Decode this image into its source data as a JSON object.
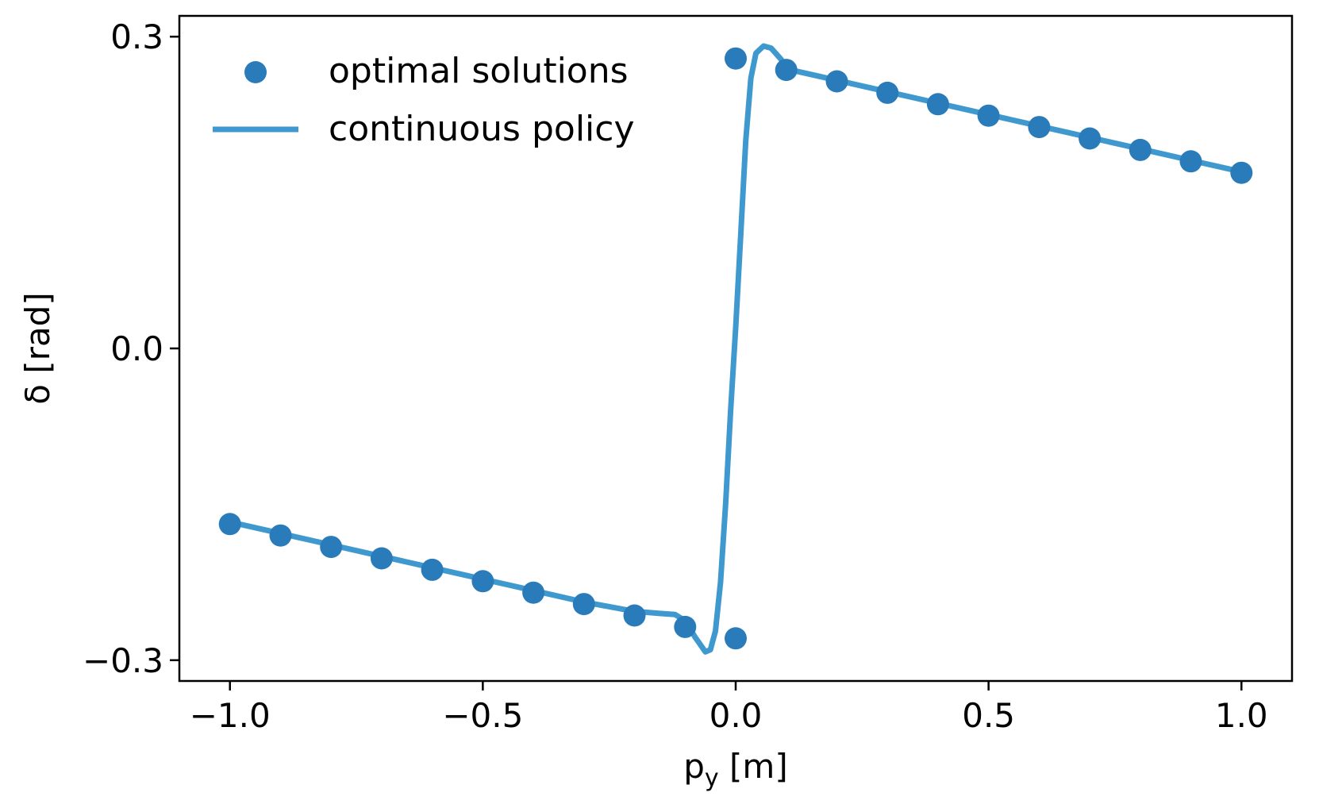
{
  "chart_data": {
    "type": "scatter+line",
    "title": "",
    "xlabel": "p",
    "xlabel_sub": "y",
    "xlabel_unit": " [m]",
    "ylabel": "δ [rad]",
    "xlim": [
      -1.1,
      1.1
    ],
    "ylim": [
      -0.32,
      0.32
    ],
    "xticks": [
      -1.0,
      -0.5,
      0.0,
      0.5,
      1.0
    ],
    "xtick_labels": [
      "−1.0",
      "−0.5",
      "0.0",
      "0.5",
      "1.0"
    ],
    "yticks": [
      -0.3,
      0.0,
      0.3
    ],
    "ytick_labels": [
      "−0.3",
      "0.0",
      "0.3"
    ],
    "legend_position": "top-left",
    "series": [
      {
        "name": "optimal solutions",
        "kind": "scatter",
        "color": "#2a7bba",
        "points": [
          [
            -1.0,
            -0.169
          ],
          [
            -0.9,
            -0.18
          ],
          [
            -0.8,
            -0.191
          ],
          [
            -0.7,
            -0.202
          ],
          [
            -0.6,
            -0.213
          ],
          [
            -0.5,
            -0.224
          ],
          [
            -0.4,
            -0.235
          ],
          [
            -0.3,
            -0.246
          ],
          [
            -0.2,
            -0.257
          ],
          [
            -0.1,
            -0.268
          ],
          [
            0.0,
            -0.279
          ],
          [
            0.0,
            0.279
          ],
          [
            0.1,
            0.268
          ],
          [
            0.2,
            0.257
          ],
          [
            0.3,
            0.246
          ],
          [
            0.4,
            0.235
          ],
          [
            0.5,
            0.224
          ],
          [
            0.6,
            0.213
          ],
          [
            0.7,
            0.202
          ],
          [
            0.8,
            0.191
          ],
          [
            0.9,
            0.18
          ],
          [
            1.0,
            0.169
          ]
        ]
      },
      {
        "name": "continuous policy",
        "kind": "line",
        "color": "#3f99cf",
        "points": [
          [
            -1.0,
            -0.167
          ],
          [
            -0.9,
            -0.178
          ],
          [
            -0.8,
            -0.189
          ],
          [
            -0.7,
            -0.2
          ],
          [
            -0.6,
            -0.211
          ],
          [
            -0.5,
            -0.222
          ],
          [
            -0.4,
            -0.233
          ],
          [
            -0.3,
            -0.244
          ],
          [
            -0.2,
            -0.253
          ],
          [
            -0.15,
            -0.255
          ],
          [
            -0.12,
            -0.256
          ],
          [
            -0.1,
            -0.262
          ],
          [
            -0.08,
            -0.278
          ],
          [
            -0.06,
            -0.292
          ],
          [
            -0.05,
            -0.29
          ],
          [
            -0.04,
            -0.272
          ],
          [
            -0.03,
            -0.225
          ],
          [
            -0.02,
            -0.15
          ],
          [
            -0.01,
            -0.06
          ],
          [
            0.0,
            0.02
          ],
          [
            0.01,
            0.11
          ],
          [
            0.02,
            0.2
          ],
          [
            0.03,
            0.26
          ],
          [
            0.04,
            0.284
          ],
          [
            0.055,
            0.291
          ],
          [
            0.07,
            0.289
          ],
          [
            0.09,
            0.278
          ],
          [
            0.1,
            0.269
          ],
          [
            0.2,
            0.258
          ],
          [
            0.3,
            0.247
          ],
          [
            0.4,
            0.236
          ],
          [
            0.5,
            0.225
          ],
          [
            0.6,
            0.214
          ],
          [
            0.7,
            0.203
          ],
          [
            0.8,
            0.192
          ],
          [
            0.9,
            0.181
          ],
          [
            1.0,
            0.17
          ]
        ]
      }
    ]
  }
}
